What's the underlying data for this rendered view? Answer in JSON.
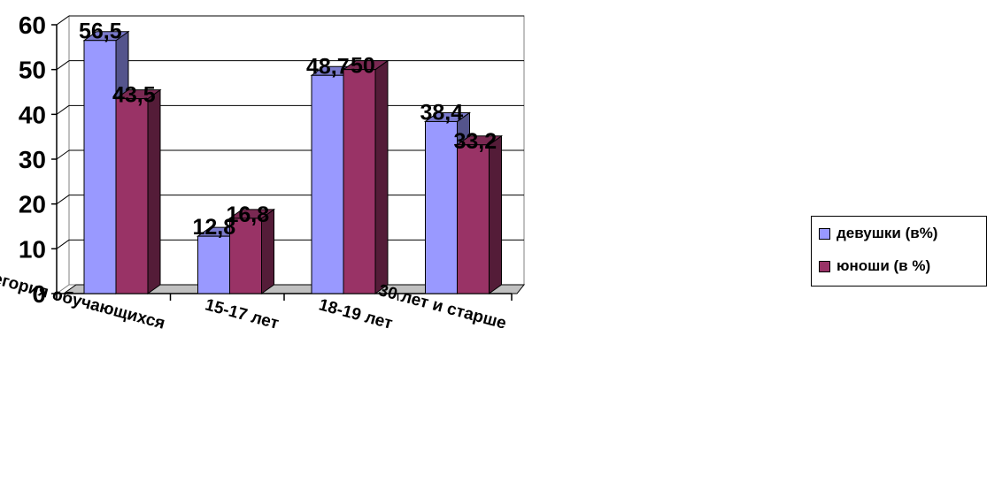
{
  "chart_data": {
    "type": "bar",
    "categories": [
      "Категория обучающихся",
      "15-17 лет",
      "18-19 лет",
      "30 лет и старше"
    ],
    "series": [
      {
        "name": "девушки (в%)",
        "values": [
          56.5,
          12.8,
          48.7,
          38.4
        ],
        "labels": [
          "56,5",
          "12,8",
          "48,7",
          "38,4"
        ],
        "color": "#9999ff"
      },
      {
        "name": "юноши (в %)",
        "values": [
          43.5,
          16.8,
          50,
          33.2
        ],
        "labels": [
          "43,5",
          "16,8",
          "50",
          "33,2"
        ],
        "color": "#993366"
      }
    ],
    "yticks": [
      "0",
      "10",
      "20",
      "30",
      "40",
      "50",
      "60"
    ],
    "ylim": [
      0,
      60
    ],
    "grid": true,
    "legend": "right"
  }
}
